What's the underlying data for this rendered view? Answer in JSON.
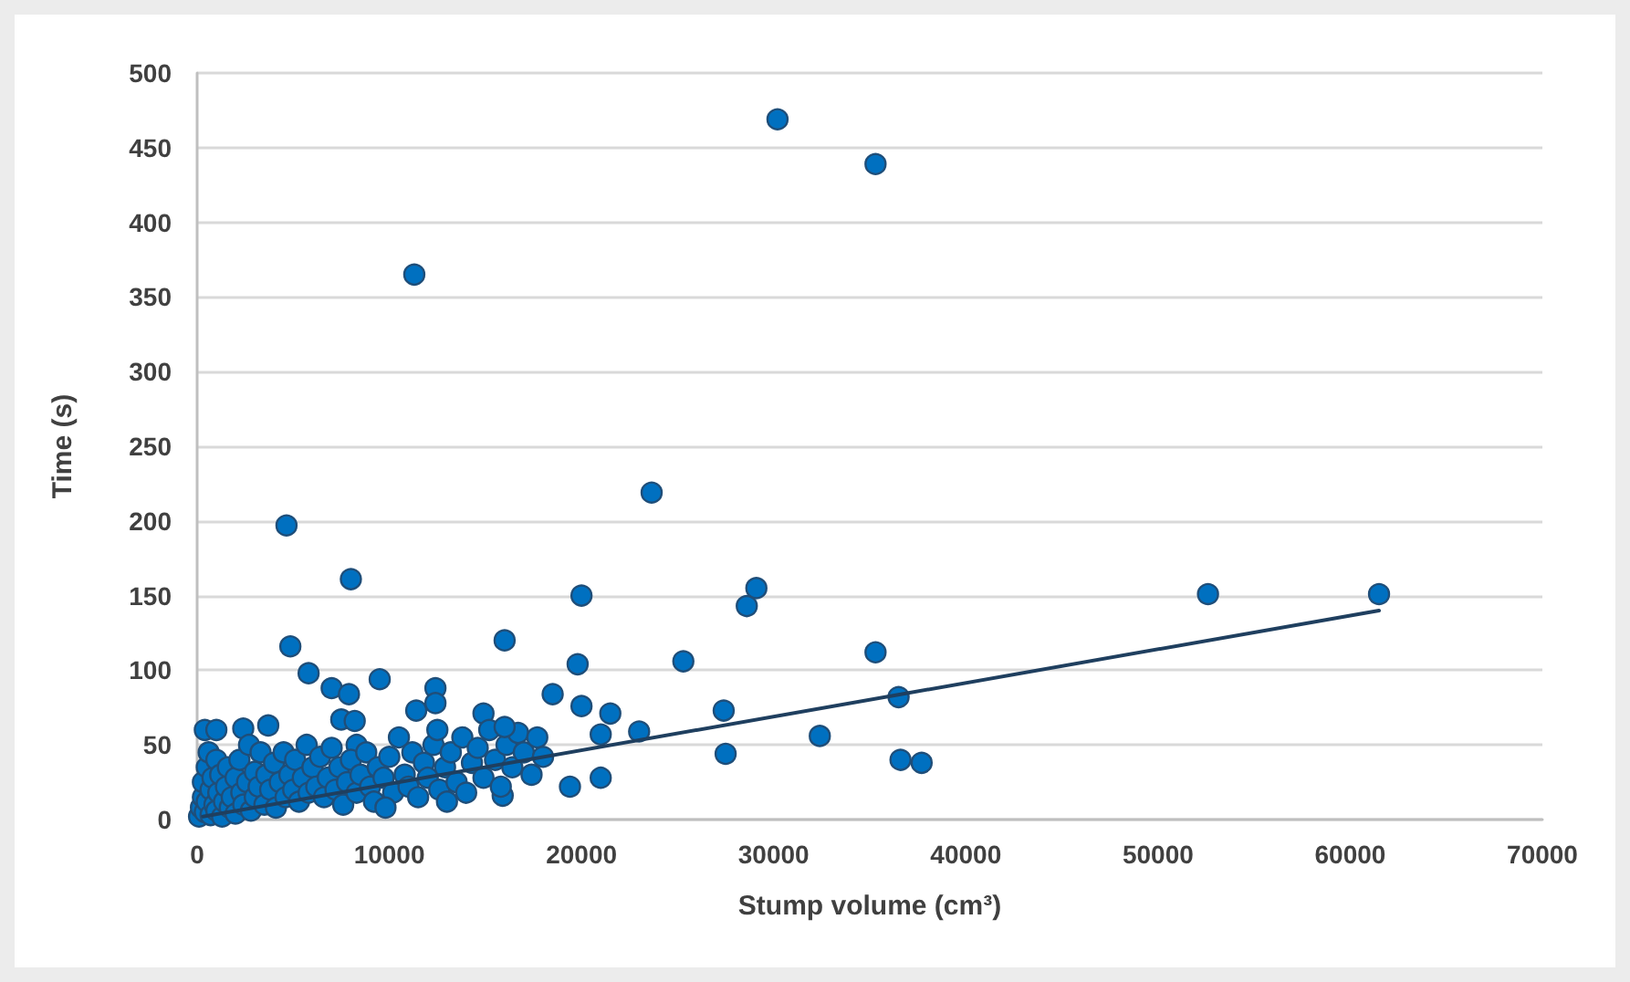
{
  "chart_data": {
    "type": "scatter",
    "xlabel": "Stump volume (cm³)",
    "ylabel": "Time (s)",
    "xlim": [
      0,
      70000
    ],
    "xticks": [
      0,
      10000,
      20000,
      30000,
      40000,
      50000,
      60000,
      70000
    ],
    "ylim": [
      0,
      500
    ],
    "yticks": [
      0,
      50,
      100,
      150,
      200,
      250,
      300,
      350,
      400,
      450,
      500
    ],
    "grid": "y",
    "marker": "circle",
    "series": [
      {
        "color": "#0070c0",
        "x": [
          30200,
          35300,
          11300,
          23650,
          4650,
          8000,
          20000,
          28600,
          29100,
          52600,
          61500,
          25300,
          35300,
          36500,
          27400,
          23000,
          32400,
          27500,
          36600,
          37700,
          21500,
          21000,
          21000,
          4850,
          5800,
          7000,
          7900,
          9500,
          12400,
          12400,
          11400,
          16000,
          14900,
          19800,
          18500,
          20000,
          19400,
          15900,
          400,
          1000,
          2400,
          3700,
          7500,
          8200,
          8300,
          100,
          200,
          300,
          300,
          400,
          500,
          500,
          600,
          700,
          700,
          800,
          900,
          1000,
          1000,
          1100,
          1200,
          1300,
          1400,
          1500,
          1600,
          1700,
          1800,
          2000,
          2000,
          2200,
          2300,
          2400,
          2600,
          2700,
          2800,
          3000,
          3000,
          3200,
          3300,
          3500,
          3600,
          3800,
          4000,
          4100,
          4300,
          4500,
          4600,
          4800,
          5000,
          5100,
          5300,
          5500,
          5700,
          5800,
          6000,
          6200,
          6400,
          6600,
          6800,
          7000,
          7200,
          7400,
          7600,
          7800,
          8000,
          8300,
          8500,
          8800,
          9000,
          9200,
          9400,
          9700,
          10000,
          10200,
          10500,
          10800,
          11000,
          11200,
          11500,
          11800,
          12000,
          12300,
          12600,
          12900,
          13200,
          13500,
          13800,
          14000,
          14300,
          14600,
          14900,
          15200,
          15500,
          15800,
          16100,
          16400,
          16700,
          17000,
          17400,
          17700,
          18000,
          13000,
          9800,
          12500,
          16000
        ],
        "values": [
          469,
          439,
          365,
          219,
          197,
          161,
          150,
          143,
          155,
          151,
          151,
          106,
          112,
          82,
          73,
          59,
          56,
          44,
          40,
          38,
          71,
          57,
          28,
          116,
          98,
          88,
          84,
          94,
          88,
          78,
          73,
          120,
          71,
          104,
          84,
          76,
          22,
          16,
          60,
          60,
          61,
          63,
          67,
          66,
          50,
          2,
          8,
          15,
          25,
          5,
          35,
          12,
          45,
          3,
          20,
          28,
          10,
          40,
          6,
          18,
          30,
          2,
          12,
          22,
          35,
          8,
          15,
          28,
          4,
          40,
          18,
          10,
          25,
          50,
          6,
          32,
          15,
          22,
          45,
          10,
          30,
          20,
          38,
          8,
          25,
          45,
          15,
          30,
          20,
          40,
          12,
          28,
          50,
          18,
          35,
          22,
          42,
          15,
          28,
          48,
          20,
          35,
          10,
          25,
          40,
          18,
          30,
          45,
          22,
          12,
          35,
          28,
          42,
          18,
          55,
          30,
          22,
          45,
          15,
          38,
          28,
          50,
          20,
          35,
          45,
          25,
          55,
          18,
          38,
          48,
          28,
          60,
          40,
          22,
          50,
          35,
          58,
          45,
          30,
          55,
          42,
          12,
          8,
          60,
          62
        ]
      },
      {
        "type": "line",
        "color": "#1f3f5f",
        "marker": "none",
        "x": [
          300,
          61500
        ],
        "values": [
          2,
          140
        ]
      }
    ]
  }
}
